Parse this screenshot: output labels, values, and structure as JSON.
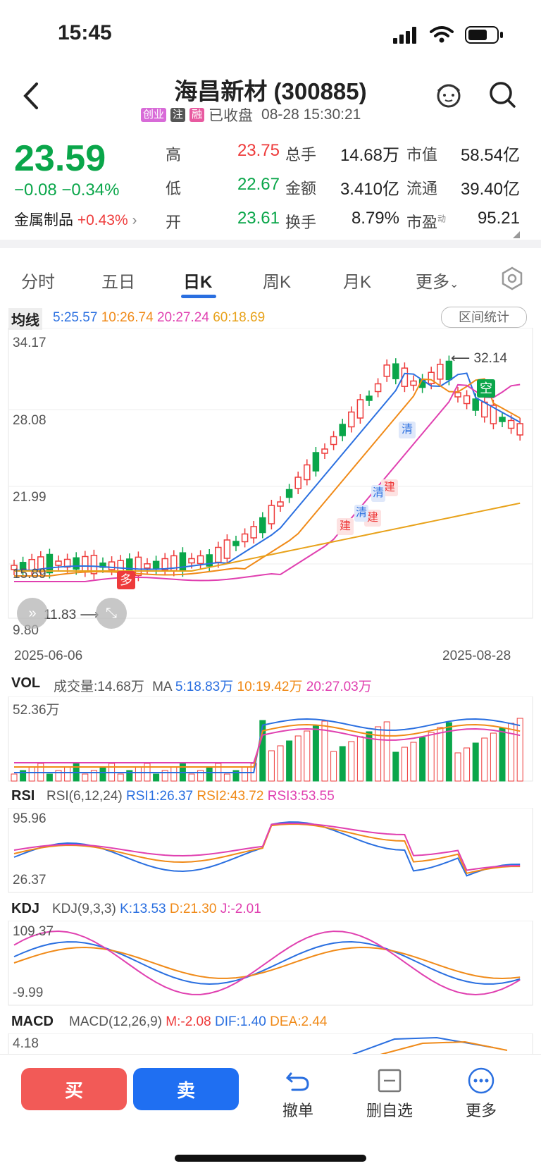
{
  "status": {
    "time": "15:45"
  },
  "header": {
    "title": "海昌新材 (300885)",
    "tags": [
      "创业",
      "注",
      "融"
    ],
    "state": "已收盘",
    "datetime": "08-28 15:30:21"
  },
  "quote": {
    "price": "23.59",
    "change": "−0.08 −0.34%",
    "sector_name": "金属制品",
    "sector_change": "+0.43%",
    "stats": [
      {
        "label": "高",
        "value": "23.75",
        "color": "#ee3b3b"
      },
      {
        "label": "低",
        "value": "22.67",
        "color": "#0aa64a"
      },
      {
        "label": "开",
        "value": "23.61",
        "color": "#0aa64a"
      },
      {
        "label": "总手",
        "value": "14.68万"
      },
      {
        "label": "金额",
        "value": "3.410亿"
      },
      {
        "label": "换手",
        "value": "8.79%"
      },
      {
        "label": "市值",
        "value": "58.54亿"
      },
      {
        "label": "流通",
        "value": "39.40亿"
      },
      {
        "label": "市盈",
        "label_sup": "动",
        "value": "95.21"
      }
    ]
  },
  "tabs": [
    "分时",
    "五日",
    "日K",
    "周K",
    "月K",
    "更多"
  ],
  "active_tab": "日K",
  "kline": {
    "ma_title": "均线",
    "ma": [
      {
        "text": "5:25.57",
        "color": "#2a6fe0"
      },
      {
        "text": "10:26.74",
        "color": "#f08a18"
      },
      {
        "text": "20:27.24",
        "color": "#e040b0"
      },
      {
        "text": "60:18.69",
        "color": "#e8a21a"
      }
    ],
    "interval_button": "区间统计",
    "y_labels": [
      "34.17",
      "28.08",
      "21.99",
      "15.89",
      "9.80"
    ],
    "high_mark": "32.14",
    "low_mark": "11.83",
    "date_start": "2025-06-06",
    "date_end": "2025-08-28",
    "signals": [
      "多",
      "空",
      "清",
      "建",
      "建",
      "清",
      "建",
      "清"
    ]
  },
  "vol": {
    "title": "VOL",
    "current": "成交量:14.68万",
    "ma_label": "MA",
    "ma": [
      {
        "text": "5:18.83万",
        "color": "#2a6fe0"
      },
      {
        "text": "10:19.42万",
        "color": "#f08a18"
      },
      {
        "text": "20:27.03万",
        "color": "#e040b0"
      }
    ],
    "max_label": "52.36万"
  },
  "rsi": {
    "title": "RSI",
    "params": "RSI(6,12,24)",
    "values": [
      {
        "text": "RSI1:26.37",
        "color": "#2a6fe0"
      },
      {
        "text": "RSI2:43.72",
        "color": "#f08a18"
      },
      {
        "text": "RSI3:53.55",
        "color": "#e040b0"
      }
    ],
    "top": "95.96",
    "bottom": "26.37"
  },
  "kdj": {
    "title": "KDJ",
    "params": "KDJ(9,3,3)",
    "values": [
      {
        "text": "K:13.53",
        "color": "#2a6fe0"
      },
      {
        "text": "D:21.30",
        "color": "#f08a18"
      },
      {
        "text": "J:-2.01",
        "color": "#e040b0"
      }
    ],
    "top": "109.37",
    "bottom": "-9.99"
  },
  "macd": {
    "title": "MACD",
    "params": "MACD(12,26,9)",
    "values": [
      {
        "text": "M:-2.08",
        "color": "#ee3b3b"
      },
      {
        "text": "DIF:1.40",
        "color": "#2a6fe0"
      },
      {
        "text": "DEA:2.44",
        "color": "#f08a18"
      }
    ],
    "top": "4.18"
  },
  "bottom": {
    "buy": "买",
    "sell": "卖",
    "actions": [
      "撤单",
      "删自选",
      "更多"
    ]
  }
}
